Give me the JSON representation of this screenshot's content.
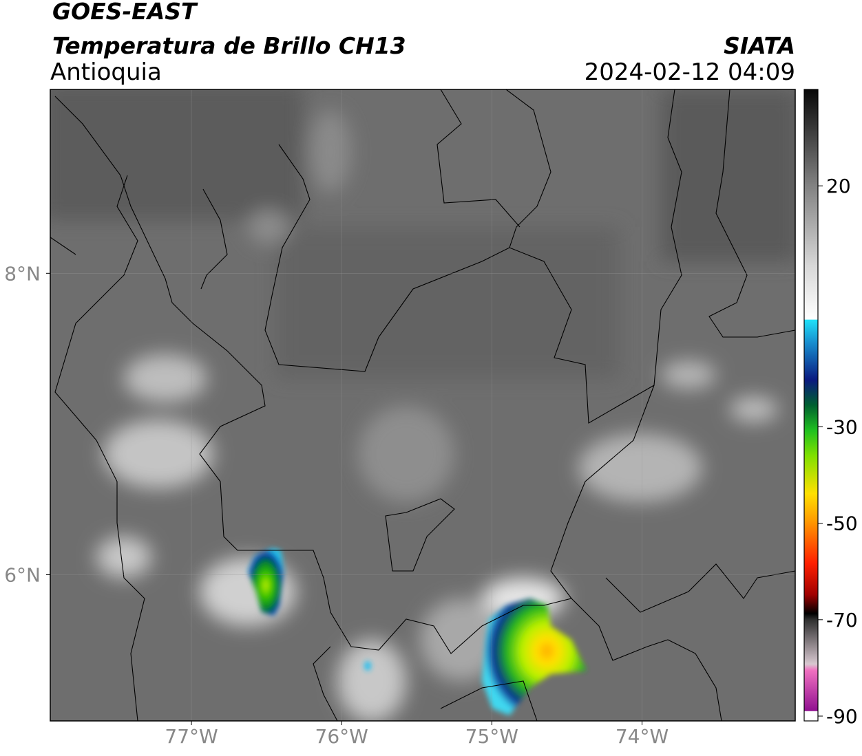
{
  "header": {
    "title": "GOES-EAST",
    "subtitle": "Temperatura de Brillo CH13",
    "region": "Antioquia",
    "source": "SIATA",
    "datetime": "2024-02-12 04:09"
  },
  "map": {
    "xlim": [
      -77.94,
      -72.98
    ],
    "ylim": [
      5.03,
      9.22
    ],
    "xticks": [
      {
        "value": -77,
        "label": "77°W"
      },
      {
        "value": -76,
        "label": "76°W"
      },
      {
        "value": -75,
        "label": "75°W"
      },
      {
        "value": -74,
        "label": "74°W"
      }
    ],
    "yticks": [
      {
        "value": 6,
        "label": "6°N"
      },
      {
        "value": 8,
        "label": "8°N"
      }
    ],
    "grid": true
  },
  "colorbar": {
    "lim": [
      -91,
      40
    ],
    "ticks": [
      20,
      -30,
      -50,
      -70,
      -90
    ]
  }
}
